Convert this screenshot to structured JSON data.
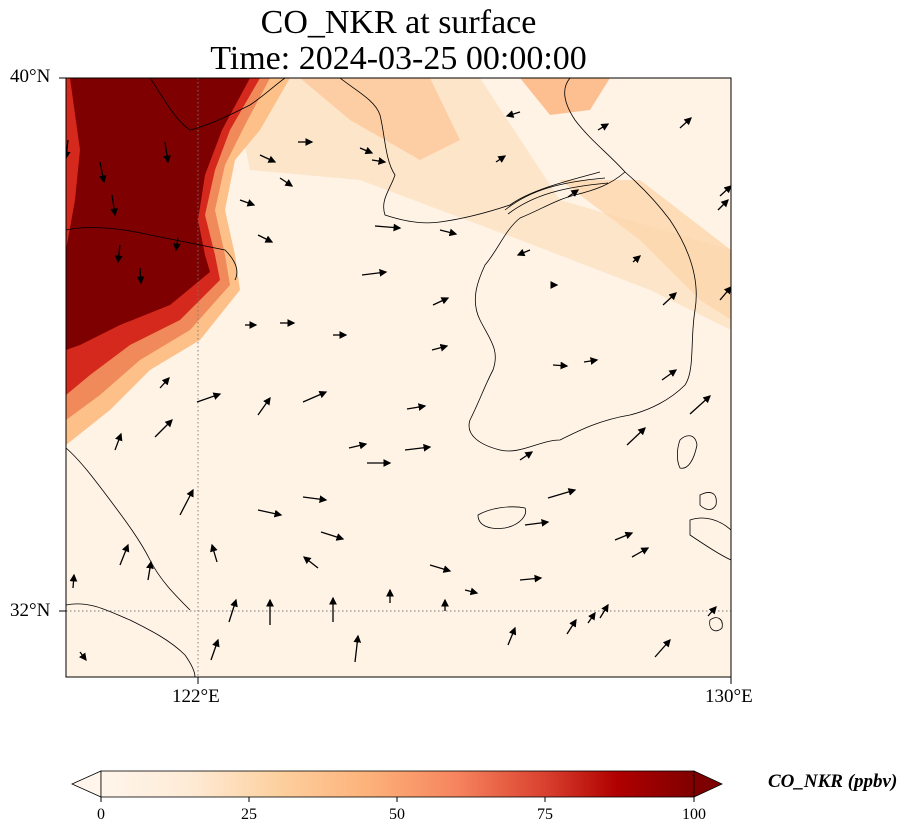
{
  "title": {
    "line1": "CO_NKR at surface",
    "line2": "Time: 2024-03-25 00:00:00"
  },
  "axes": {
    "lat_labels": [
      "40°N",
      "32°N"
    ],
    "lon_labels": [
      "122°E",
      "130°E"
    ]
  },
  "colorbar": {
    "label": "CO_NKR (ppbv)",
    "ticks": [
      "0",
      "25",
      "50",
      "75",
      "100"
    ],
    "min": 0,
    "max": 100,
    "colormap": [
      "#fff5eb",
      "#fee6ce",
      "#fdd0a2",
      "#fdae6b",
      "#fd8d3c",
      "#f16913",
      "#d94801",
      "#a60000",
      "#7f0000"
    ],
    "extend": "both"
  },
  "colors": {
    "coast": "#000000",
    "grid": "#777777",
    "background_field": "#fff3e6",
    "high_field": "#7f0000"
  }
}
